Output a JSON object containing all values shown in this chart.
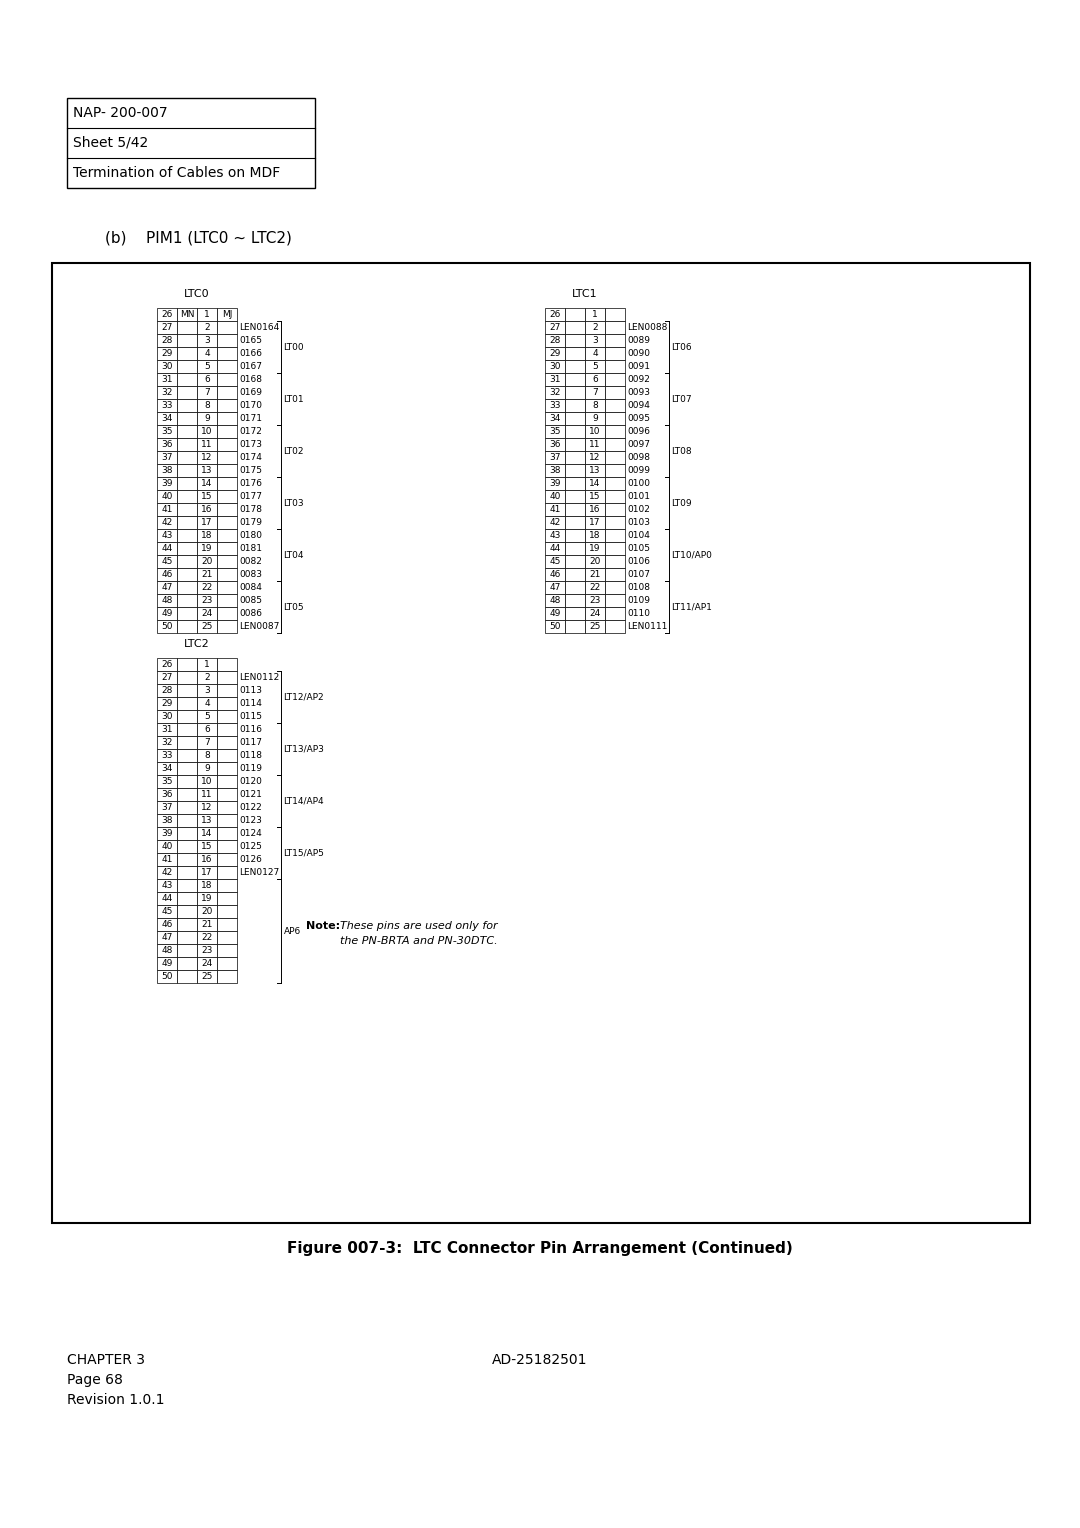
{
  "page_title_box": {
    "line1": "NAP- 200-007",
    "line2": "Sheet 5/42",
    "line3": "Termination of Cables on MDF"
  },
  "subtitle": "(b)    PIM1 (LTC0 ~ LTC2)",
  "figure_caption": "Figure 007-3:  LTC Connector Pin Arrangement (Continued)",
  "footer_left": "CHAPTER 3\nPage 68\nRevision 1.0.1",
  "footer_right": "AD-25182501",
  "ltc0": {
    "title": "LTC0",
    "header": [
      "26",
      "MN",
      "1",
      "MJ"
    ],
    "col1": [
      "27",
      "28",
      "29",
      "30",
      "31",
      "32",
      "33",
      "34",
      "35",
      "36",
      "37",
      "38",
      "39",
      "40",
      "41",
      "42",
      "43",
      "44",
      "45",
      "46",
      "47",
      "48",
      "49",
      "50"
    ],
    "col2": [
      "2",
      "3",
      "4",
      "5",
      "6",
      "7",
      "8",
      "9",
      "10",
      "11",
      "12",
      "13",
      "14",
      "15",
      "16",
      "17",
      "18",
      "19",
      "20",
      "21",
      "22",
      "23",
      "24",
      "25"
    ],
    "pins": [
      "LEN0164",
      "0165",
      "0166",
      "0167",
      "0168",
      "0169",
      "0170",
      "0171",
      "0172",
      "0173",
      "0174",
      "0175",
      "0176",
      "0177",
      "0178",
      "0179",
      "0180",
      "0181",
      "0082",
      "0083",
      "0084",
      "0085",
      "0086",
      "LEN0087"
    ],
    "groups": [
      {
        "label": "LT00",
        "rows": [
          0,
          1,
          2,
          3
        ]
      },
      {
        "label": "LT01",
        "rows": [
          4,
          5,
          6,
          7
        ]
      },
      {
        "label": "LT02",
        "rows": [
          8,
          9,
          10,
          11
        ]
      },
      {
        "label": "LT03",
        "rows": [
          12,
          13,
          14,
          15
        ]
      },
      {
        "label": "LT04",
        "rows": [
          16,
          17,
          18,
          19
        ]
      },
      {
        "label": "LT05",
        "rows": [
          20,
          21,
          22,
          23
        ]
      }
    ]
  },
  "ltc1": {
    "title": "LTC1",
    "header": [
      "26",
      "",
      "1",
      ""
    ],
    "col1": [
      "27",
      "28",
      "29",
      "30",
      "31",
      "32",
      "33",
      "34",
      "35",
      "36",
      "37",
      "38",
      "39",
      "40",
      "41",
      "42",
      "43",
      "44",
      "45",
      "46",
      "47",
      "48",
      "49",
      "50"
    ],
    "col2": [
      "2",
      "3",
      "4",
      "5",
      "6",
      "7",
      "8",
      "9",
      "10",
      "11",
      "12",
      "13",
      "14",
      "15",
      "16",
      "17",
      "18",
      "19",
      "20",
      "21",
      "22",
      "23",
      "24",
      "25"
    ],
    "pins": [
      "LEN0088",
      "0089",
      "0090",
      "0091",
      "0092",
      "0093",
      "0094",
      "0095",
      "0096",
      "0097",
      "0098",
      "0099",
      "0100",
      "0101",
      "0102",
      "0103",
      "0104",
      "0105",
      "0106",
      "0107",
      "0108",
      "0109",
      "0110",
      "LEN0111"
    ],
    "groups": [
      {
        "label": "LT06",
        "rows": [
          0,
          1,
          2,
          3
        ]
      },
      {
        "label": "LT07",
        "rows": [
          4,
          5,
          6,
          7
        ]
      },
      {
        "label": "LT08",
        "rows": [
          8,
          9,
          10,
          11
        ]
      },
      {
        "label": "LT09",
        "rows": [
          12,
          13,
          14,
          15
        ]
      },
      {
        "label": "LT10/AP0",
        "rows": [
          16,
          17,
          18,
          19
        ]
      },
      {
        "label": "LT11/AP1",
        "rows": [
          20,
          21,
          22,
          23
        ]
      }
    ]
  },
  "ltc2": {
    "title": "LTC2",
    "header": [
      "26",
      "",
      "1",
      ""
    ],
    "col1": [
      "27",
      "28",
      "29",
      "30",
      "31",
      "32",
      "33",
      "34",
      "35",
      "36",
      "37",
      "38",
      "39",
      "40",
      "41",
      "42",
      "43",
      "44",
      "45",
      "46",
      "47",
      "48",
      "49",
      "50"
    ],
    "col2": [
      "2",
      "3",
      "4",
      "5",
      "6",
      "7",
      "8",
      "9",
      "10",
      "11",
      "12",
      "13",
      "14",
      "15",
      "16",
      "17",
      "18",
      "19",
      "20",
      "21",
      "22",
      "23",
      "24",
      "25"
    ],
    "pins": [
      "LEN0112",
      "0113",
      "0114",
      "0115",
      "0116",
      "0117",
      "0118",
      "0119",
      "0120",
      "0121",
      "0122",
      "0123",
      "0124",
      "0125",
      "0126",
      "LEN0127",
      "",
      "",
      "",
      "",
      "",
      "",
      "",
      ""
    ],
    "groups": [
      {
        "label": "LT12/AP2",
        "rows": [
          0,
          1,
          2,
          3
        ]
      },
      {
        "label": "LT13/AP3",
        "rows": [
          4,
          5,
          6,
          7
        ]
      },
      {
        "label": "LT14/AP4",
        "rows": [
          8,
          9,
          10,
          11
        ]
      },
      {
        "label": "LT15/AP5",
        "rows": [
          12,
          13,
          14,
          15
        ]
      }
    ],
    "ap6_rows": [
      16,
      17,
      18,
      19,
      20,
      21,
      22,
      23
    ],
    "ap6_label": "AP6"
  }
}
